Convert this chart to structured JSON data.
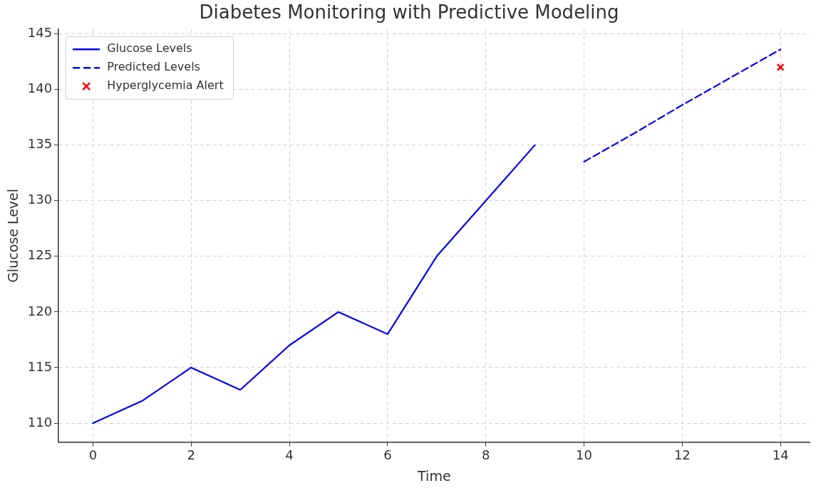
{
  "chart_data": {
    "type": "line",
    "title": "Diabetes Monitoring with Predictive Modeling",
    "xlabel": "Time",
    "ylabel": "Glucose Level",
    "xlim": [
      -0.7,
      14.6
    ],
    "xticks": [
      0,
      2,
      4,
      6,
      8,
      10,
      12,
      14
    ],
    "ylim": [
      108.3,
      145.4
    ],
    "yticks": [
      110,
      115,
      120,
      125,
      130,
      135,
      140,
      145
    ],
    "grid": true,
    "legend": "top left",
    "series": [
      {
        "name": "Glucose Levels",
        "color": "#0000ff",
        "type": "line",
        "line_style": "solid",
        "marker": "none",
        "x": [
          0,
          1,
          2,
          3,
          4,
          5,
          6,
          7,
          8,
          9
        ],
        "values": [
          110,
          112,
          115,
          113,
          117,
          120,
          118,
          125,
          130,
          135
        ]
      },
      {
        "name": "Predicted Levels",
        "color": "#0000ff",
        "type": "line",
        "line_style": "dashed",
        "marker": "none",
        "x": [
          10,
          11,
          12,
          13,
          14
        ],
        "values": [
          133.5,
          136.0,
          138.6,
          141.1,
          143.6
        ]
      },
      {
        "name": "Hyperglycemia Alert",
        "color": "#ff0000",
        "type": "scatter",
        "marker": "cross",
        "x": [
          14
        ],
        "values": [
          142
        ]
      }
    ]
  }
}
